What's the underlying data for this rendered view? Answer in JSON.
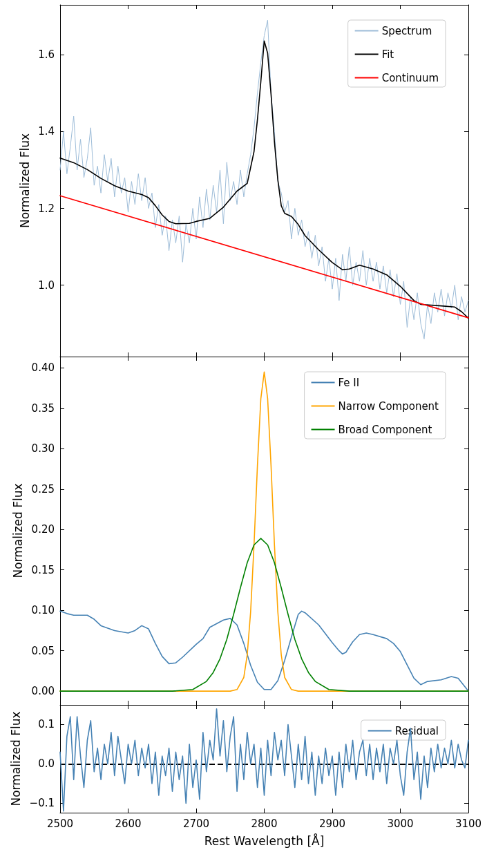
{
  "chart_data": [
    {
      "type": "line",
      "ylabel": "Normalized Flux",
      "xlim": [
        2500,
        3100
      ],
      "xticks": [
        2500,
        2600,
        2700,
        2800,
        2900,
        3000,
        3100
      ],
      "ylim": [
        0.814,
        1.73
      ],
      "yticks": [
        {
          "value": 1.0,
          "label": "1.0"
        },
        {
          "value": 1.2,
          "label": "1.2"
        },
        {
          "value": 1.4,
          "label": "1.4"
        },
        {
          "value": 1.6,
          "label": "1.6"
        }
      ],
      "tick_labels": "y",
      "grid": false,
      "legend": "top right",
      "marker": "none",
      "series": [
        {
          "name": "Spectrum",
          "color": "#9dbcd8",
          "x": [
            2500,
            2505,
            2510,
            2515,
            2520,
            2525,
            2530,
            2535,
            2540,
            2545,
            2550,
            2555,
            2560,
            2565,
            2570,
            2575,
            2580,
            2585,
            2590,
            2595,
            2600,
            2605,
            2610,
            2615,
            2620,
            2625,
            2630,
            2635,
            2640,
            2645,
            2650,
            2655,
            2660,
            2665,
            2670,
            2675,
            2680,
            2685,
            2690,
            2695,
            2700,
            2705,
            2710,
            2715,
            2720,
            2725,
            2730,
            2735,
            2740,
            2745,
            2750,
            2755,
            2760,
            2765,
            2770,
            2775,
            2780,
            2785,
            2790,
            2795,
            2800,
            2805,
            2810,
            2815,
            2820,
            2825,
            2830,
            2835,
            2840,
            2845,
            2850,
            2855,
            2860,
            2865,
            2870,
            2875,
            2880,
            2885,
            2890,
            2895,
            2900,
            2905,
            2910,
            2915,
            2920,
            2925,
            2930,
            2935,
            2940,
            2945,
            2950,
            2955,
            2960,
            2965,
            2970,
            2975,
            2980,
            2985,
            2990,
            2995,
            3000,
            3005,
            3010,
            3015,
            3020,
            3025,
            3030,
            3035,
            3040,
            3045,
            3050,
            3055,
            3060,
            3065,
            3070,
            3075,
            3080,
            3085,
            3090,
            3095,
            3100
          ],
          "values": [
            1.3,
            1.4,
            1.29,
            1.36,
            1.44,
            1.3,
            1.38,
            1.28,
            1.33,
            1.41,
            1.26,
            1.31,
            1.24,
            1.34,
            1.27,
            1.33,
            1.23,
            1.31,
            1.24,
            1.28,
            1.19,
            1.27,
            1.21,
            1.29,
            1.22,
            1.28,
            1.2,
            1.24,
            1.15,
            1.21,
            1.13,
            1.18,
            1.09,
            1.17,
            1.11,
            1.18,
            1.06,
            1.16,
            1.11,
            1.2,
            1.12,
            1.23,
            1.15,
            1.25,
            1.17,
            1.26,
            1.19,
            1.3,
            1.16,
            1.32,
            1.22,
            1.27,
            1.21,
            1.3,
            1.23,
            1.29,
            1.34,
            1.41,
            1.5,
            1.58,
            1.65,
            1.69,
            1.5,
            1.4,
            1.27,
            1.24,
            1.19,
            1.22,
            1.12,
            1.2,
            1.13,
            1.17,
            1.1,
            1.14,
            1.07,
            1.13,
            1.05,
            1.1,
            1.01,
            1.07,
            0.99,
            1.07,
            0.96,
            1.08,
            1.01,
            1.1,
            1.0,
            1.06,
            1.01,
            1.09,
            1.0,
            1.07,
            1.01,
            1.06,
            0.99,
            1.05,
            0.98,
            1.04,
            0.97,
            1.03,
            0.95,
            1.01,
            0.89,
            0.97,
            0.91,
            0.98,
            0.9,
            0.86,
            0.95,
            0.9,
            0.98,
            0.93,
            0.99,
            0.92,
            0.98,
            0.94,
            1.0,
            0.91,
            0.97,
            0.93,
            0.96
          ]
        },
        {
          "name": "Fit",
          "color": "#000000",
          "x": [
            2500,
            2520,
            2540,
            2560,
            2580,
            2600,
            2620,
            2630,
            2640,
            2650,
            2660,
            2670,
            2690,
            2700,
            2720,
            2740,
            2760,
            2775,
            2785,
            2790,
            2795,
            2800,
            2805,
            2810,
            2815,
            2820,
            2825,
            2830,
            2840,
            2850,
            2860,
            2880,
            2900,
            2915,
            2925,
            2940,
            2960,
            2980,
            3000,
            3020,
            3030,
            3060,
            3080,
            3090,
            3100
          ],
          "values": [
            1.331,
            1.319,
            1.301,
            1.278,
            1.259,
            1.245,
            1.236,
            1.228,
            1.207,
            1.183,
            1.166,
            1.16,
            1.161,
            1.166,
            1.174,
            1.203,
            1.245,
            1.265,
            1.348,
            1.431,
            1.53,
            1.636,
            1.604,
            1.497,
            1.373,
            1.274,
            1.207,
            1.187,
            1.179,
            1.158,
            1.129,
            1.092,
            1.059,
            1.04,
            1.042,
            1.052,
            1.042,
            1.027,
            0.997,
            0.96,
            0.95,
            0.946,
            0.943,
            0.931,
            0.914
          ]
        },
        {
          "name": "Continuum",
          "color": "#ff0000",
          "x": [
            2500,
            3100
          ],
          "values": [
            1.233,
            0.915
          ]
        }
      ]
    },
    {
      "type": "line",
      "ylabel": "Normalized Flux",
      "xlim": [
        2500,
        3100
      ],
      "xticks": [
        2500,
        2600,
        2700,
        2800,
        2900,
        3000,
        3100
      ],
      "ylim": [
        -0.017,
        0.414
      ],
      "yticks": [
        {
          "value": 0,
          "label": "0.00"
        },
        {
          "value": 0.05,
          "label": "0.05"
        },
        {
          "value": 0.1,
          "label": "0.10"
        },
        {
          "value": 0.15,
          "label": "0.15"
        },
        {
          "value": 0.2,
          "label": "0.20"
        },
        {
          "value": 0.25,
          "label": "0.25"
        },
        {
          "value": 0.3,
          "label": "0.30"
        },
        {
          "value": 0.35,
          "label": "0.35"
        },
        {
          "value": 0.4,
          "label": "0.40"
        }
      ],
      "tick_labels": "y",
      "grid": false,
      "legend": "top right",
      "marker": "none",
      "series": [
        {
          "name": "Fe II",
          "color": "#4682b4",
          "x": [
            2500,
            2510,
            2520,
            2540,
            2550,
            2560,
            2580,
            2600,
            2610,
            2620,
            2630,
            2640,
            2650,
            2660,
            2670,
            2680,
            2700,
            2710,
            2720,
            2740,
            2750,
            2760,
            2770,
            2780,
            2790,
            2800,
            2810,
            2820,
            2830,
            2840,
            2850,
            2855,
            2860,
            2880,
            2900,
            2910,
            2915,
            2920,
            2930,
            2940,
            2950,
            2960,
            2980,
            2990,
            3000,
            3020,
            3030,
            3040,
            3060,
            3075,
            3085,
            3100
          ],
          "values": [
            0.099,
            0.096,
            0.094,
            0.094,
            0.089,
            0.081,
            0.075,
            0.072,
            0.075,
            0.081,
            0.077,
            0.059,
            0.043,
            0.034,
            0.035,
            0.042,
            0.058,
            0.065,
            0.079,
            0.088,
            0.09,
            0.082,
            0.059,
            0.032,
            0.011,
            0.002,
            0.002,
            0.013,
            0.038,
            0.067,
            0.095,
            0.099,
            0.097,
            0.082,
            0.06,
            0.05,
            0.046,
            0.048,
            0.061,
            0.07,
            0.072,
            0.07,
            0.065,
            0.059,
            0.049,
            0.016,
            0.008,
            0.012,
            0.014,
            0.018,
            0.016,
            0.0
          ]
        },
        {
          "name": "Narrow Component",
          "color": "#ffa500",
          "x": [
            2500,
            2740,
            2750,
            2760,
            2770,
            2775,
            2780,
            2785,
            2790,
            2795,
            2800,
            2805,
            2810,
            2815,
            2820,
            2825,
            2830,
            2840,
            2850,
            2860,
            3100
          ],
          "values": [
            0,
            0,
            0.0,
            0.002,
            0.017,
            0.045,
            0.098,
            0.181,
            0.279,
            0.362,
            0.395,
            0.362,
            0.279,
            0.181,
            0.098,
            0.045,
            0.017,
            0.002,
            0.0,
            0,
            0
          ]
        },
        {
          "name": "Broad Component",
          "color": "#008000",
          "x": [
            2500,
            2665,
            2695,
            2715,
            2725,
            2735,
            2745,
            2755,
            2765,
            2775,
            2785,
            2795,
            2805,
            2815,
            2825,
            2835,
            2845,
            2855,
            2865,
            2875,
            2895,
            2925,
            3100
          ],
          "values": [
            0,
            0,
            0.002,
            0.012,
            0.023,
            0.04,
            0.064,
            0.095,
            0.128,
            0.159,
            0.181,
            0.189,
            0.181,
            0.159,
            0.128,
            0.095,
            0.064,
            0.04,
            0.023,
            0.012,
            0.002,
            0,
            0
          ]
        }
      ]
    },
    {
      "type": "line",
      "xlabel": "Rest Wavelength [Å]",
      "ylabel": "Normalized Flux",
      "xlim": [
        2500,
        3100
      ],
      "xticks": [
        2500,
        2600,
        2700,
        2800,
        2900,
        3000,
        3100
      ],
      "ylim": [
        -0.124,
        0.15
      ],
      "yticks": [
        {
          "value": -0.1,
          "label": "−0.1"
        },
        {
          "value": 0,
          "label": "0.0"
        },
        {
          "value": 0.1,
          "label": "0.1"
        }
      ],
      "grid": false,
      "legend": "top right",
      "marker": "none",
      "ref_lines": [
        {
          "axis": "y",
          "value": 0,
          "color": "#000000",
          "line_style": "dashed"
        }
      ],
      "series": [
        {
          "name": "Residual",
          "color": "#4682b4",
          "x": [
            2500,
            2505,
            2510,
            2515,
            2520,
            2525,
            2530,
            2535,
            2540,
            2545,
            2550,
            2555,
            2560,
            2565,
            2570,
            2575,
            2580,
            2585,
            2590,
            2595,
            2600,
            2605,
            2610,
            2615,
            2620,
            2625,
            2630,
            2635,
            2640,
            2645,
            2650,
            2655,
            2660,
            2665,
            2670,
            2675,
            2680,
            2685,
            2690,
            2695,
            2700,
            2705,
            2710,
            2715,
            2720,
            2725,
            2730,
            2735,
            2740,
            2745,
            2750,
            2755,
            2760,
            2765,
            2770,
            2775,
            2780,
            2785,
            2790,
            2795,
            2800,
            2805,
            2810,
            2815,
            2820,
            2825,
            2830,
            2835,
            2840,
            2845,
            2850,
            2855,
            2860,
            2865,
            2870,
            2875,
            2880,
            2885,
            2890,
            2895,
            2900,
            2905,
            2910,
            2915,
            2920,
            2925,
            2930,
            2935,
            2940,
            2945,
            2950,
            2955,
            2960,
            2965,
            2970,
            2975,
            2980,
            2985,
            2990,
            2995,
            3000,
            3005,
            3010,
            3015,
            3020,
            3025,
            3030,
            3035,
            3040,
            3045,
            3050,
            3055,
            3060,
            3065,
            3070,
            3075,
            3080,
            3085,
            3090,
            3095,
            3100
          ],
          "values": [
            0.03,
            -0.12,
            0.07,
            0.12,
            -0.04,
            0.12,
            0.02,
            -0.06,
            0.06,
            0.11,
            -0.02,
            0.04,
            -0.04,
            0.05,
            0.0,
            0.08,
            -0.03,
            0.07,
            0.01,
            -0.05,
            0.05,
            0.0,
            0.06,
            -0.03,
            0.04,
            -0.01,
            0.05,
            -0.05,
            0.03,
            -0.08,
            0.02,
            -0.03,
            0.04,
            -0.07,
            0.03,
            -0.04,
            0.02,
            -0.1,
            0.05,
            -0.06,
            0.01,
            -0.09,
            0.08,
            -0.02,
            0.06,
            0.01,
            0.14,
            0.02,
            0.11,
            -0.02,
            0.07,
            0.12,
            -0.07,
            0.05,
            -0.04,
            0.08,
            0.0,
            0.05,
            -0.06,
            0.04,
            -0.08,
            0.06,
            -0.03,
            0.08,
            0.01,
            0.06,
            -0.03,
            0.1,
            0.02,
            -0.06,
            0.05,
            -0.04,
            0.07,
            -0.05,
            0.03,
            -0.08,
            0.02,
            -0.05,
            0.04,
            -0.03,
            0.02,
            -0.08,
            0.03,
            -0.06,
            0.05,
            -0.02,
            0.06,
            -0.04,
            0.03,
            0.06,
            -0.03,
            0.05,
            -0.04,
            0.04,
            -0.02,
            0.05,
            -0.05,
            0.04,
            0.0,
            0.06,
            -0.03,
            -0.08,
            0.03,
            0.09,
            -0.04,
            0.03,
            -0.09,
            0.02,
            -0.06,
            0.04,
            -0.02,
            0.05,
            -0.01,
            0.04,
            0.0,
            0.06,
            -0.01,
            0.05,
            0.01,
            -0.01,
            0.06
          ]
        }
      ]
    }
  ]
}
